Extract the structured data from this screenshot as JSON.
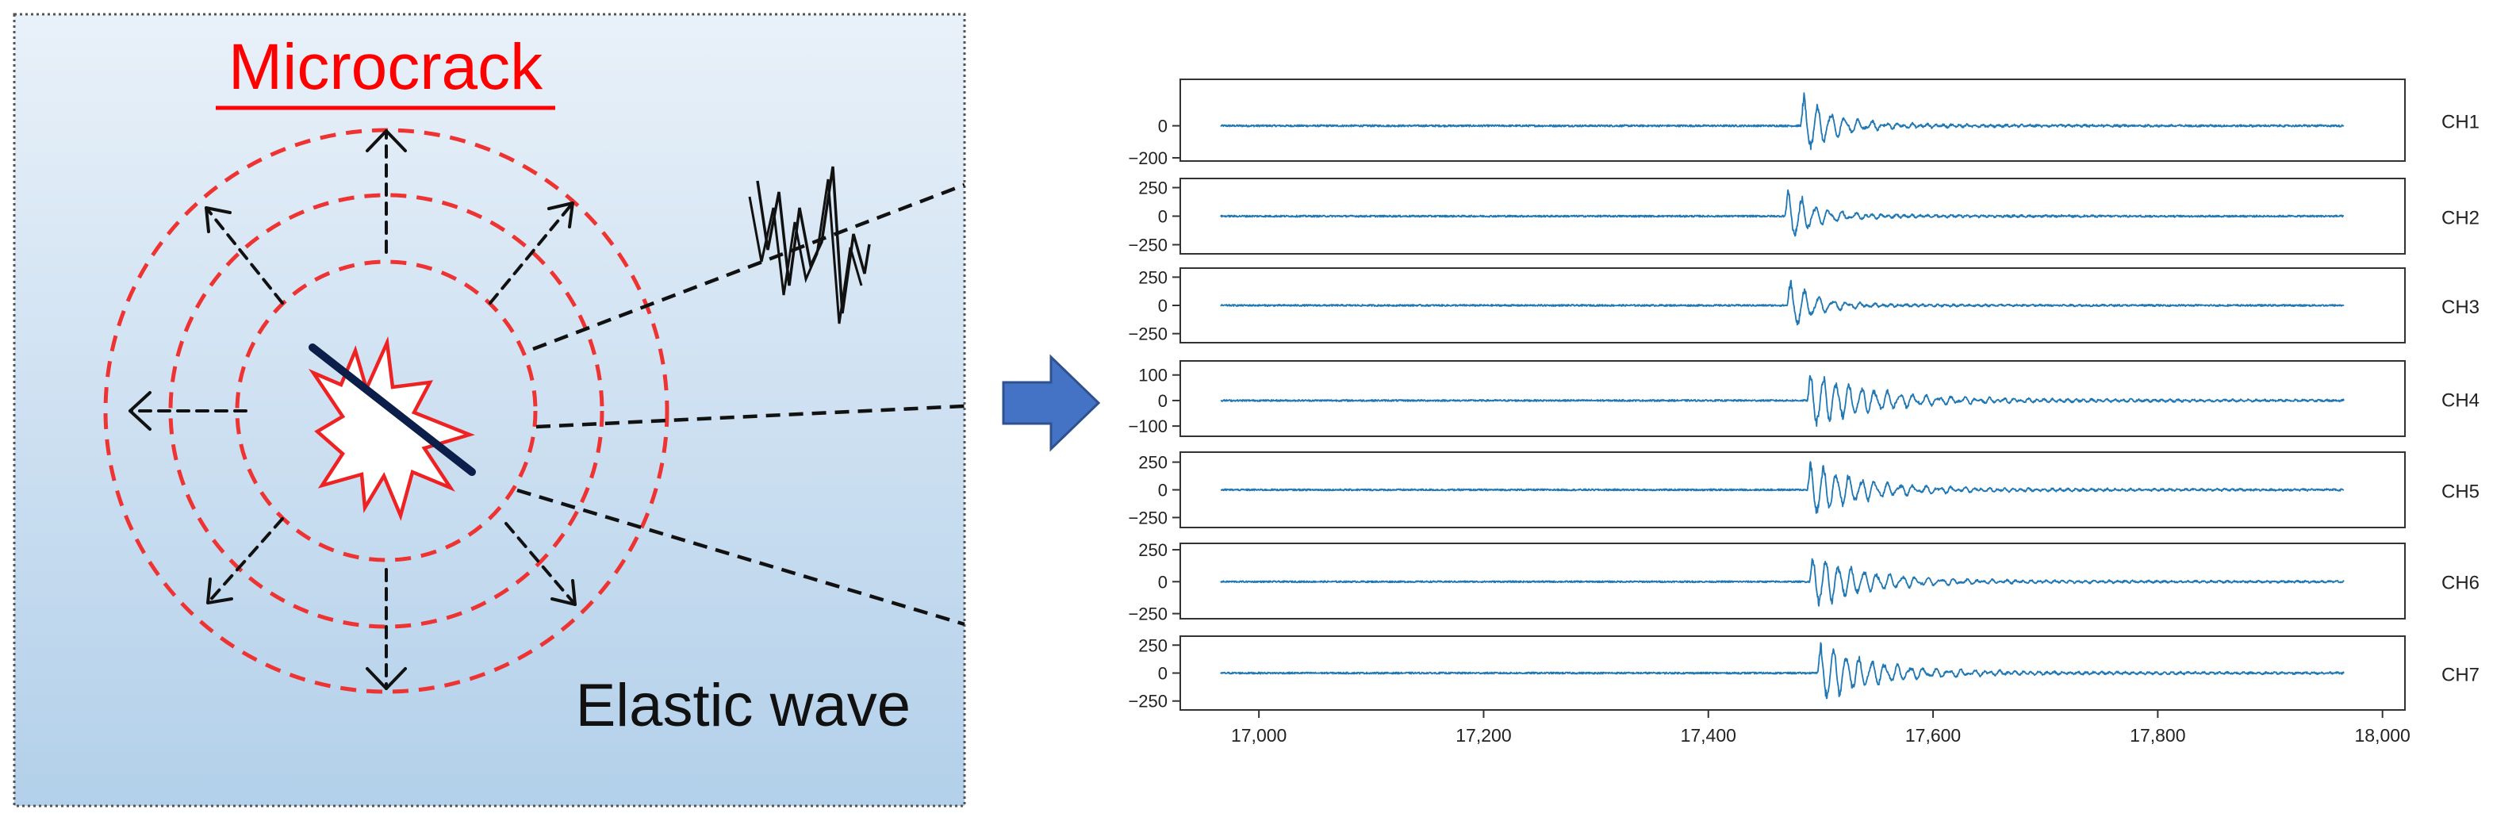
{
  "diagram": {
    "title": "Microcrack",
    "caption": "Elastic wave",
    "colors": {
      "title": "#ff0000",
      "rings": "#ee3333",
      "crack_line": "#0b1f4a",
      "burst": "#ee2222",
      "arrow_fill": "#4472c4",
      "arrow_stroke": "#2f528f",
      "background_top": "#e9f1f9",
      "background_bottom": "#b3d0ea"
    }
  },
  "chart_data": {
    "type": "line",
    "x_ticks": [
      17000,
      17200,
      17400,
      17600,
      17800,
      18000
    ],
    "x_tick_labels": [
      "17,000",
      "17,200",
      "17,400",
      "17,600",
      "17,800",
      "18,000"
    ],
    "xlim": [
      16930,
      18020
    ],
    "signal_x_range": [
      16966,
      17966
    ],
    "line_color": "#1f77b4",
    "series": [
      {
        "name": "CH1",
        "ylim": [
          -220,
          290
        ],
        "yticks": [
          0,
          -200
        ],
        "ytick_labels": [
          "0",
          "−200"
        ],
        "onset": 17482,
        "peak": 230,
        "decay": 28,
        "freq": 0.52
      },
      {
        "name": "CH2",
        "ylim": [
          -330,
          330
        ],
        "yticks": [
          250,
          0,
          -250
        ],
        "ytick_labels": [
          "250",
          "0",
          "−250"
        ],
        "onset": 17468,
        "peak": 300,
        "decay": 24,
        "freq": 0.52
      },
      {
        "name": "CH3",
        "ylim": [
          -330,
          330
        ],
        "yticks": [
          250,
          0,
          -250
        ],
        "ytick_labels": [
          "250",
          "0",
          "−250"
        ],
        "onset": 17470,
        "peak": 290,
        "decay": 22,
        "freq": 0.5
      },
      {
        "name": "CH4",
        "ylim": [
          -140,
          155
        ],
        "yticks": [
          100,
          0,
          -100
        ],
        "ytick_labels": [
          "100",
          "0",
          "−100"
        ],
        "onset": 17488,
        "peak": 130,
        "decay": 55,
        "freq": 0.55
      },
      {
        "name": "CH5",
        "ylim": [
          -340,
          340
        ],
        "yticks": [
          250,
          0,
          -250
        ],
        "ytick_labels": [
          "250",
          "0",
          "−250"
        ],
        "onset": 17488,
        "peak": 300,
        "decay": 45,
        "freq": 0.55
      },
      {
        "name": "CH6",
        "ylim": [
          -290,
          300
        ],
        "yticks": [
          250,
          0,
          -250
        ],
        "ytick_labels": [
          "250",
          "0",
          "−250"
        ],
        "onset": 17490,
        "peak": 240,
        "decay": 50,
        "freq": 0.55
      },
      {
        "name": "CH7",
        "ylim": [
          -330,
          330
        ],
        "yticks": [
          250,
          0,
          -250
        ],
        "ytick_labels": [
          "250",
          "0",
          "−250"
        ],
        "onset": 17497,
        "peak": 300,
        "decay": 50,
        "freq": 0.55
      }
    ]
  }
}
